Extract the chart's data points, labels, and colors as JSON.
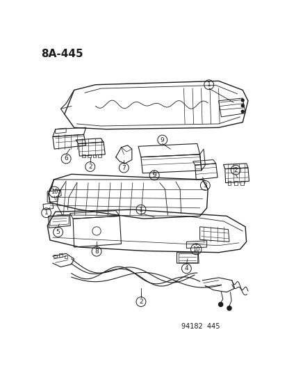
{
  "title": "8A-445",
  "footer": "94182  445",
  "bg_color": "#ffffff",
  "line_color": "#1a1a1a",
  "fig_width": 4.14,
  "fig_height": 5.33,
  "dpi": 100
}
